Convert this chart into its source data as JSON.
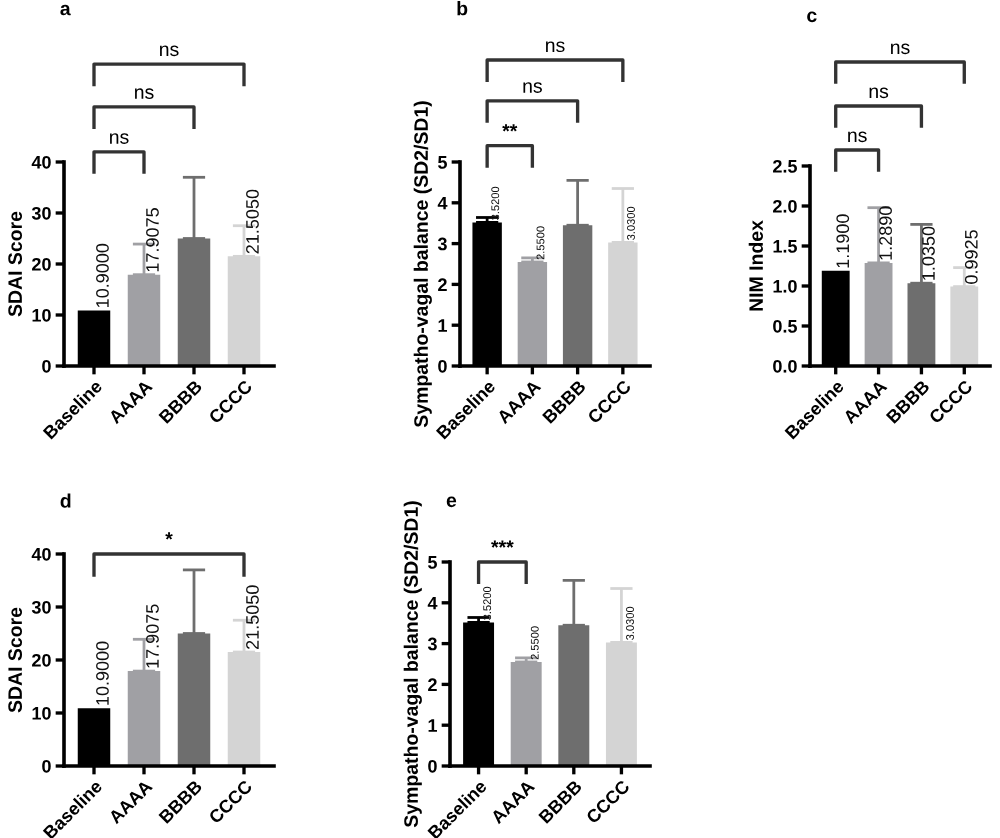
{
  "chart_data": [
    {
      "type": "bar",
      "title": "a",
      "ylabel": "SDAI Score",
      "categories": [
        "Baseline",
        "AAAA",
        "BBBB",
        "CCCC"
      ],
      "values": [
        10.9,
        17.9075,
        25,
        21.505
      ],
      "errors": [
        null,
        6,
        12,
        6
      ],
      "colors": [
        "#000000",
        "#a0a0a4",
        "#6e6e6e",
        "#d4d4d4"
      ],
      "value_labels": [
        "10.9000",
        "17.9075",
        null,
        "21.5050"
      ],
      "ylim": [
        0,
        40
      ],
      "yticks": [
        0,
        10,
        20,
        30,
        40
      ],
      "grid": false,
      "legend": false,
      "annotations": [
        "ns",
        "ns",
        "ns"
      ]
    },
    {
      "type": "bar",
      "title": "b",
      "ylabel": "Sympatho-vagal balance (SD2/SD1)",
      "categories": [
        "Baseline",
        "AAAA",
        "BBBB",
        "CCCC"
      ],
      "values": [
        3.52,
        2.55,
        3.45,
        3.03
      ],
      "errors": [
        0.12,
        0.1,
        1.1,
        1.32
      ],
      "colors": [
        "#000000",
        "#a0a0a4",
        "#6e6e6e",
        "#d4d4d4"
      ],
      "value_labels": [
        "3.5200",
        "2.5500",
        null,
        "3.0300"
      ],
      "ylim": [
        0,
        5
      ],
      "yticks": [
        0,
        1,
        2,
        3,
        4,
        5
      ],
      "grid": false,
      "legend": false,
      "annotations": [
        "**",
        "ns",
        "ns"
      ]
    },
    {
      "type": "bar",
      "title": "c",
      "ylabel": "NIM Index",
      "categories": [
        "Baseline",
        "AAAA",
        "BBBB",
        "CCCC"
      ],
      "values": [
        1.19,
        1.289,
        1.035,
        0.9925
      ],
      "errors": [
        null,
        0.69,
        0.735,
        0.2375
      ],
      "colors": [
        "#000000",
        "#a0a0a4",
        "#6e6e6e",
        "#d4d4d4"
      ],
      "value_labels": [
        "1.1900",
        "1.2890",
        "1.0350",
        "0.9925"
      ],
      "ylim": [
        0,
        2.5
      ],
      "yticks": [
        {
          "value": 0,
          "label": "0.0"
        },
        0.5,
        {
          "value": 1,
          "label": "1.0"
        },
        1.5,
        {
          "value": 2,
          "label": "2.0"
        },
        2.5
      ],
      "grid": false,
      "legend": false,
      "annotations": [
        "ns",
        "ns",
        "ns"
      ]
    },
    {
      "type": "bar",
      "title": "d",
      "ylabel": "SDAI Score",
      "categories": [
        "Baseline",
        "AAAA",
        "BBBB",
        "CCCC"
      ],
      "values": [
        10.9,
        17.9075,
        25,
        21.505
      ],
      "errors": [
        null,
        6,
        12,
        6
      ],
      "colors": [
        "#000000",
        "#a0a0a4",
        "#6e6e6e",
        "#d4d4d4"
      ],
      "value_labels": [
        "10.9000",
        "17.9075",
        null,
        "21.5050"
      ],
      "ylim": [
        0,
        40
      ],
      "yticks": [
        0,
        10,
        20,
        30,
        40
      ],
      "grid": false,
      "legend": false,
      "annotations": [
        "*"
      ]
    },
    {
      "type": "bar",
      "title": "e",
      "ylabel": "Sympatho-vagal balance (SD2/SD1)",
      "categories": [
        "Baseline",
        "AAAA",
        "BBBB",
        "CCCC"
      ],
      "values": [
        3.52,
        2.55,
        3.45,
        3.03
      ],
      "errors": [
        0.12,
        0.1,
        1.1,
        1.32
      ],
      "colors": [
        "#000000",
        "#a0a0a4",
        "#6e6e6e",
        "#d4d4d4"
      ],
      "value_labels": [
        "3.5200",
        "2.5500",
        null,
        "3.0300"
      ],
      "ylim": [
        0,
        5
      ],
      "yticks": [
        0,
        1,
        2,
        3,
        4,
        5
      ],
      "grid": false,
      "legend": false,
      "annotations": [
        "***"
      ]
    }
  ]
}
